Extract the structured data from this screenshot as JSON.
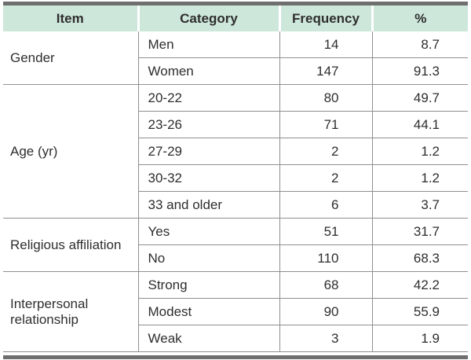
{
  "colors": {
    "header_bg": "#cee7db",
    "grid_line": "#8f8f8f",
    "thick_rule": "#6f6f6f",
    "text": "#2e2e2e"
  },
  "table": {
    "columns": [
      "Item",
      "Category",
      "Frequency",
      "%"
    ],
    "sections": [
      {
        "item": "Gender",
        "rows": [
          {
            "category": "Men",
            "frequency": "14",
            "percent": "8.7"
          },
          {
            "category": "Women",
            "frequency": "147",
            "percent": "91.3"
          }
        ]
      },
      {
        "item": "Age (yr)",
        "rows": [
          {
            "category": "20-22",
            "frequency": "80",
            "percent": "49.7"
          },
          {
            "category": "23-26",
            "frequency": "71",
            "percent": "44.1"
          },
          {
            "category": "27-29",
            "frequency": "2",
            "percent": "1.2"
          },
          {
            "category": "30-32",
            "frequency": "2",
            "percent": "1.2"
          },
          {
            "category": "33 and older",
            "frequency": "6",
            "percent": "3.7"
          }
        ]
      },
      {
        "item": "Religious affiliation",
        "rows": [
          {
            "category": "Yes",
            "frequency": "51",
            "percent": "31.7"
          },
          {
            "category": "No",
            "frequency": "110",
            "percent": "68.3"
          }
        ]
      },
      {
        "item": "Interpersonal relationship",
        "rows": [
          {
            "category": "Strong",
            "frequency": "68",
            "percent": "42.2"
          },
          {
            "category": "Modest",
            "frequency": "90",
            "percent": "55.9"
          },
          {
            "category": "Weak",
            "frequency": "3",
            "percent": "1.9"
          }
        ]
      }
    ]
  },
  "chart_data": {
    "type": "table",
    "title": "",
    "columns": [
      "Item",
      "Category",
      "Frequency",
      "%"
    ],
    "rows": [
      [
        "Gender",
        "Men",
        14,
        8.7
      ],
      [
        "Gender",
        "Women",
        147,
        91.3
      ],
      [
        "Age (yr)",
        "20-22",
        80,
        49.7
      ],
      [
        "Age (yr)",
        "23-26",
        71,
        44.1
      ],
      [
        "Age (yr)",
        "27-29",
        2,
        1.2
      ],
      [
        "Age (yr)",
        "30-32",
        2,
        1.2
      ],
      [
        "Age (yr)",
        "33 and older",
        6,
        3.7
      ],
      [
        "Religious affiliation",
        "Yes",
        51,
        31.7
      ],
      [
        "Religious affiliation",
        "No",
        110,
        68.3
      ],
      [
        "Interpersonal relationship",
        "Strong",
        68,
        42.2
      ],
      [
        "Interpersonal relationship",
        "Modest",
        90,
        55.9
      ],
      [
        "Interpersonal relationship",
        "Weak",
        3,
        1.9
      ]
    ]
  }
}
